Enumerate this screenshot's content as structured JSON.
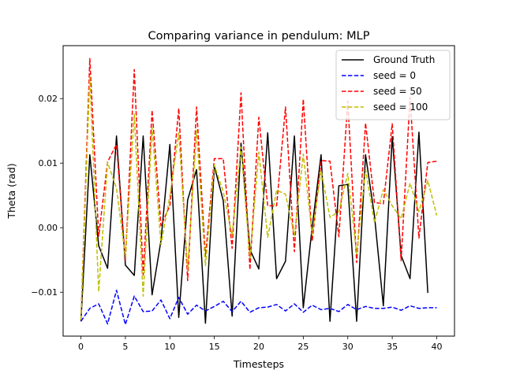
{
  "chart_data": {
    "type": "line",
    "title": "Comparing variance in pendulum: MLP",
    "xlabel": "Timesteps",
    "ylabel": "Theta (rad)",
    "xlim": [
      -2,
      42
    ],
    "ylim": [
      -0.0168,
      0.0282
    ],
    "xticks": [
      0,
      5,
      10,
      15,
      20,
      25,
      30,
      35,
      40
    ],
    "yticks": [
      -0.01,
      0.0,
      0.01,
      0.02
    ],
    "ytick_labels": [
      "−0.01",
      "0.00",
      "0.01",
      "0.02"
    ],
    "grid": false,
    "legend_position": "top-right",
    "series": [
      {
        "name": "Ground Truth",
        "color": "#000000",
        "dash": "solid",
        "x": [
          0,
          1,
          2,
          3,
          4,
          5,
          6,
          7,
          8,
          9,
          10,
          11,
          12,
          13,
          14,
          15,
          16,
          17,
          18,
          19,
          20,
          21,
          22,
          23,
          24,
          25,
          26,
          27,
          28,
          29,
          30,
          31,
          32,
          33,
          34,
          35,
          36,
          37,
          38,
          39
        ],
        "values": [
          -0.0145,
          0.0113,
          -0.0028,
          -0.0063,
          0.0142,
          -0.0058,
          -0.0074,
          0.0142,
          -0.0104,
          -0.002,
          0.0129,
          -0.0139,
          0.0043,
          0.009,
          -0.0148,
          0.0095,
          0.0042,
          -0.0137,
          0.0131,
          -0.0034,
          -0.0064,
          0.0147,
          -0.0079,
          -0.0052,
          0.0142,
          -0.0124,
          0.0001,
          0.0113,
          -0.0145,
          0.0065,
          0.0067,
          -0.0145,
          0.0113,
          0.0019,
          -0.0121,
          0.0141,
          -0.0043,
          -0.0079,
          0.0148,
          -0.0101
        ]
      },
      {
        "name": "seed = 0",
        "color": "#0000ff",
        "dash": "dashed",
        "x": [
          0,
          1,
          2,
          3,
          4,
          5,
          6,
          7,
          8,
          9,
          10,
          11,
          12,
          13,
          14,
          15,
          16,
          17,
          18,
          19,
          20,
          21,
          22,
          23,
          24,
          25,
          26,
          27,
          28,
          29,
          30,
          31,
          32,
          33,
          34,
          35,
          36,
          37,
          38,
          39,
          40
        ],
        "values": [
          -0.0145,
          -0.0125,
          -0.0118,
          -0.0149,
          -0.0097,
          -0.015,
          -0.0106,
          -0.013,
          -0.0129,
          -0.0112,
          -0.0141,
          -0.0108,
          -0.0134,
          -0.012,
          -0.0129,
          -0.0122,
          -0.0114,
          -0.013,
          -0.0114,
          -0.0131,
          -0.0124,
          -0.0123,
          -0.0119,
          -0.0129,
          -0.0118,
          -0.0131,
          -0.012,
          -0.0127,
          -0.0125,
          -0.013,
          -0.0119,
          -0.0127,
          -0.0122,
          -0.0125,
          -0.0125,
          -0.0123,
          -0.0128,
          -0.0121,
          -0.0125,
          -0.0124,
          -0.0124
        ]
      },
      {
        "name": "seed = 50",
        "color": "#ff0000",
        "dash": "dashed",
        "x": [
          0,
          1,
          2,
          3,
          4,
          5,
          6,
          7,
          8,
          9,
          10,
          11,
          12,
          13,
          14,
          15,
          16,
          17,
          18,
          19,
          20,
          21,
          22,
          23,
          24,
          25,
          26,
          27,
          28,
          29,
          30,
          31,
          32,
          33,
          34,
          35,
          36,
          37,
          38,
          39,
          40
        ],
        "values": [
          -0.0143,
          0.0262,
          -0.0013,
          0.0102,
          0.0129,
          -0.0051,
          0.0245,
          -0.0073,
          0.0182,
          0.0003,
          0.0034,
          0.0185,
          -0.0082,
          0.0187,
          -0.0045,
          0.0107,
          0.0107,
          -0.0032,
          0.0209,
          -0.0065,
          0.0171,
          0.0034,
          0.0034,
          0.0187,
          -0.0037,
          0.0199,
          -0.0021,
          0.0104,
          0.0103,
          -0.0014,
          0.0196,
          -0.0054,
          0.0162,
          0.0039,
          0.0037,
          0.0161,
          -0.0051,
          0.0202,
          -0.0016,
          0.0101,
          0.0103
        ]
      },
      {
        "name": "seed = 100",
        "color": "#bfbf00",
        "dash": "dashed",
        "x": [
          0,
          1,
          2,
          3,
          4,
          5,
          6,
          7,
          8,
          9,
          10,
          11,
          12,
          13,
          14,
          15,
          16,
          17,
          18,
          19,
          20,
          21,
          22,
          23,
          24,
          25,
          26,
          27,
          28,
          29,
          30,
          31,
          32,
          33,
          34,
          35,
          36,
          37,
          38,
          39,
          40
        ],
        "values": [
          -0.0143,
          0.0234,
          -0.0099,
          0.0101,
          0.0061,
          -0.0045,
          0.0176,
          -0.0106,
          0.0155,
          -0.0026,
          0.0049,
          0.0147,
          -0.0066,
          0.0151,
          -0.0059,
          0.0097,
          0.0056,
          -0.0012,
          0.0125,
          -0.0047,
          0.0117,
          -0.0015,
          0.0058,
          0.0052,
          -0.0012,
          0.0114,
          -0.0011,
          0.0089,
          0.0016,
          0.0025,
          0.0084,
          -0.0041,
          0.009,
          0.0008,
          0.0059,
          0.0034,
          0.0014,
          0.0069,
          0.0025,
          0.0073,
          0.0019
        ]
      }
    ]
  }
}
